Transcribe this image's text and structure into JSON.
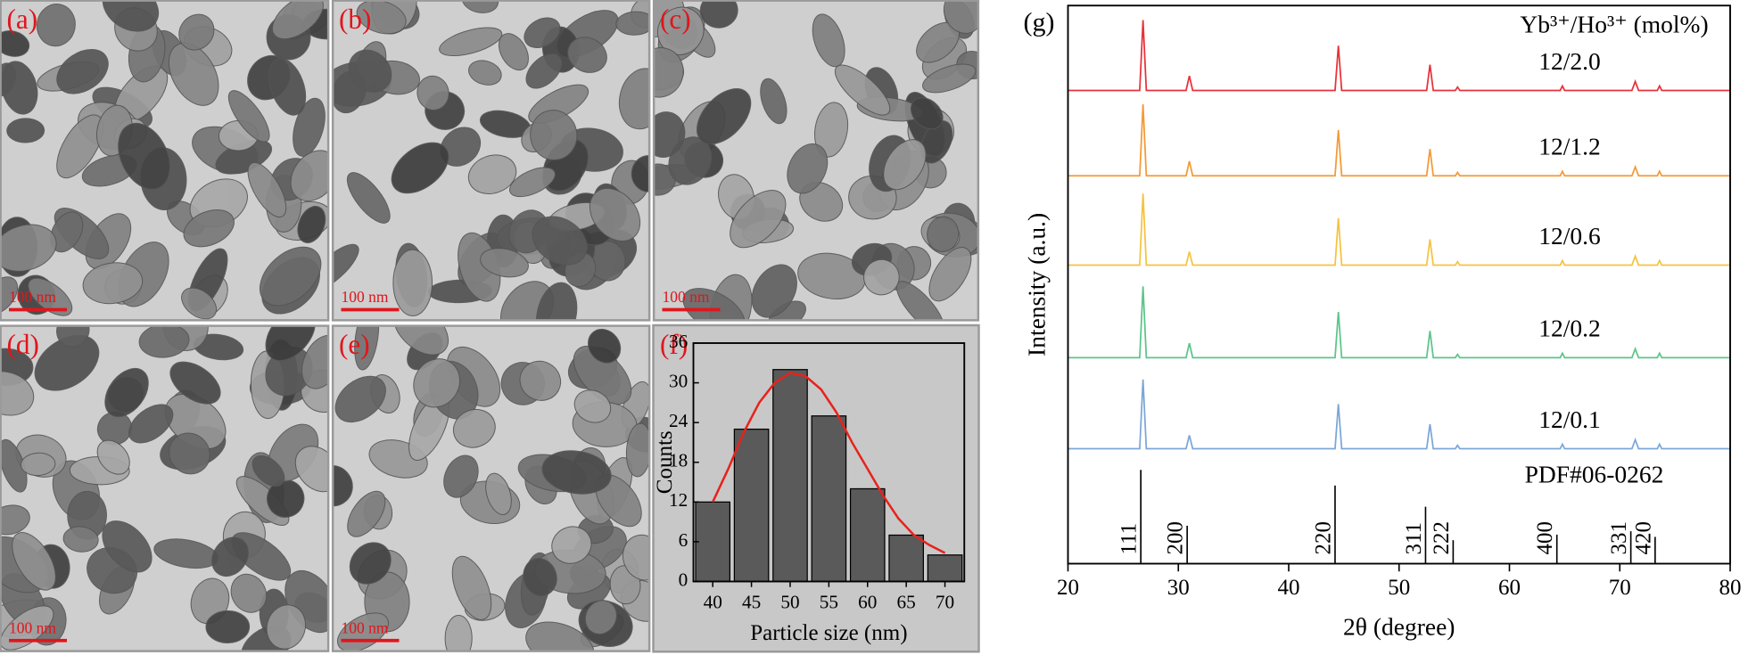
{
  "panels": [
    {
      "label": "(a)",
      "scale_bar": "100 nm"
    },
    {
      "label": "(b)",
      "scale_bar": "100 nm"
    },
    {
      "label": "(c)",
      "scale_bar": "100 nm"
    },
    {
      "label": "(d)",
      "scale_bar": "100 nm"
    },
    {
      "label": "(e)",
      "scale_bar": "100 nm"
    }
  ],
  "chart_data": [
    {
      "type": "histogram",
      "panel_label": "(f)",
      "bins": [
        37.5,
        42.5,
        47.5,
        52.5,
        57.5,
        62.5,
        67.5,
        72.5
      ],
      "values": [
        12,
        23,
        32,
        25,
        14,
        7,
        4
      ],
      "color": "#5a5a5a",
      "fit": {
        "color": "#e8221c",
        "x": [
          40,
          42,
          44,
          46,
          48,
          50,
          52,
          54,
          56,
          58,
          60,
          62,
          64,
          66,
          68,
          70
        ],
        "values": [
          12,
          17,
          22.5,
          27,
          30,
          31.5,
          31,
          29,
          25.5,
          21,
          17,
          13,
          9.5,
          7,
          5.5,
          4.3
        ]
      },
      "xlim": [
        37.5,
        72.5
      ],
      "xticks": [
        40,
        45,
        50,
        55,
        60,
        65,
        70
      ],
      "ylim": [
        0,
        36
      ],
      "yticks": [
        0,
        6,
        12,
        18,
        24,
        30,
        36
      ],
      "x_label": "Particle size (nm)",
      "y_label": "Counts"
    },
    {
      "type": "line",
      "panel_label": "(g)",
      "legend_title": "Yb³⁺/Ho³⁺ (mol%)",
      "x": [
        20,
        26.5,
        26.8,
        27.1,
        30.7,
        31.0,
        31.3,
        44.2,
        44.5,
        44.8,
        52.5,
        52.8,
        53.1,
        55.1,
        55.3,
        55.5,
        64.6,
        64.8,
        65.0,
        71.1,
        71.4,
        71.7,
        73.4,
        73.6,
        73.8,
        80
      ],
      "series": [
        {
          "name": "12/2.0",
          "color": "#e8323a",
          "values": [
            84.8,
            84.8,
            97.4,
            84.8,
            84.8,
            87.4,
            84.8,
            84.8,
            92.8,
            84.8,
            84.8,
            89.4,
            84.8,
            84.8,
            85.4,
            84.8,
            84.8,
            85.6,
            84.8,
            84.8,
            86.4,
            84.8,
            84.8,
            85.6,
            84.8,
            84.8
          ]
        },
        {
          "name": "12/1.2",
          "color": "#f39a36",
          "values": [
            69.5,
            69.5,
            82.3,
            69.5,
            69.5,
            72.1,
            69.5,
            69.5,
            77.7,
            69.5,
            69.5,
            74.3,
            69.5,
            69.5,
            70.1,
            69.5,
            69.5,
            70.3,
            69.5,
            69.5,
            71.1,
            69.5,
            69.5,
            70.3,
            69.5,
            69.5
          ]
        },
        {
          "name": "12/0.6",
          "color": "#f5c342",
          "values": [
            53.5,
            53.5,
            66.3,
            53.5,
            53.5,
            55.9,
            53.5,
            53.5,
            61.9,
            53.5,
            53.5,
            58.1,
            53.5,
            53.5,
            54.1,
            53.5,
            53.5,
            54.3,
            53.5,
            53.5,
            55.1,
            53.5,
            53.5,
            54.3,
            53.5,
            53.5
          ]
        },
        {
          "name": "12/0.2",
          "color": "#5cc58a",
          "values": [
            36.9,
            36.9,
            49.7,
            36.9,
            36.9,
            39.5,
            36.9,
            36.9,
            45.1,
            36.9,
            36.9,
            41.7,
            36.9,
            36.9,
            37.5,
            36.9,
            36.9,
            37.7,
            36.9,
            36.9,
            38.5,
            36.9,
            36.9,
            37.7,
            36.9,
            36.9
          ]
        },
        {
          "name": "12/0.1",
          "color": "#7ba7d6",
          "values": [
            20.6,
            20.6,
            33.0,
            20.6,
            20.6,
            23.0,
            20.6,
            20.6,
            28.6,
            20.6,
            20.6,
            25.0,
            20.6,
            20.6,
            21.2,
            20.6,
            20.6,
            21.4,
            20.6,
            20.6,
            22.2,
            20.6,
            20.6,
            21.4,
            20.6,
            20.6
          ]
        }
      ],
      "reference": {
        "name": "PDF#06-0262",
        "color": "#000000",
        "x": [
          26.6,
          30.8,
          44.2,
          52.4,
          54.9,
          64.3,
          71.0,
          73.2
        ],
        "values": [
          16.8,
          6.8,
          14.0,
          10.2,
          4.2,
          5.2,
          5.8,
          4.8
        ],
        "labels": [
          "111",
          "200",
          "220",
          "311",
          "222",
          "400",
          "331",
          "420"
        ]
      },
      "xlim": [
        20,
        80
      ],
      "xticks": [
        20,
        30,
        40,
        50,
        60,
        70,
        80
      ],
      "ylim": [
        0,
        100
      ],
      "x_label": "2θ (degree)",
      "y_label": "Intensity (a.u.)"
    }
  ]
}
